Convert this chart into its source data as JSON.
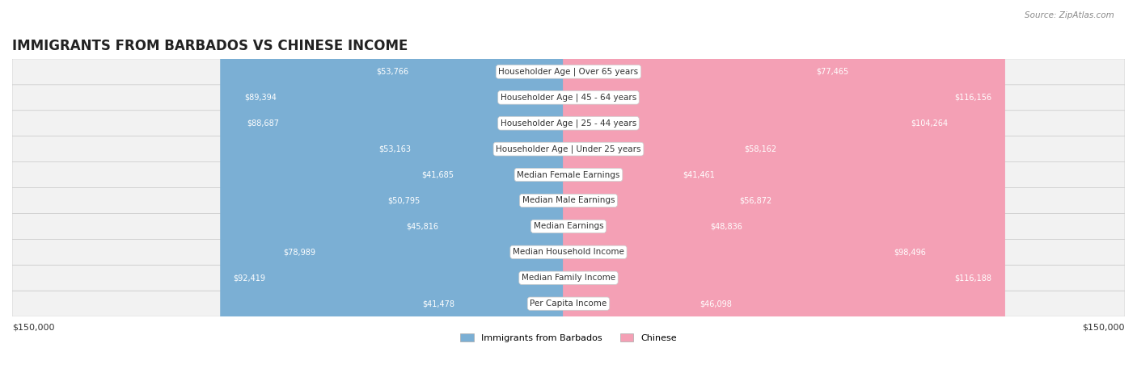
{
  "title": "IMMIGRANTS FROM BARBADOS VS CHINESE INCOME",
  "source": "Source: ZipAtlas.com",
  "categories": [
    "Per Capita Income",
    "Median Family Income",
    "Median Household Income",
    "Median Earnings",
    "Median Male Earnings",
    "Median Female Earnings",
    "Householder Age | Under 25 years",
    "Householder Age | 25 - 44 years",
    "Householder Age | 45 - 64 years",
    "Householder Age | Over 65 years"
  ],
  "barbados_values": [
    41478,
    92419,
    78989,
    45816,
    50795,
    41685,
    53163,
    88687,
    89394,
    53766
  ],
  "chinese_values": [
    46098,
    116188,
    98496,
    48836,
    56872,
    41461,
    58162,
    104264,
    116156,
    77465
  ],
  "max_val": 150000,
  "bar_height": 0.55,
  "color_barbados": "#7bafd4",
  "color_chinese": "#f4a0b5",
  "color_barbados_dark": "#5b8fbf",
  "color_chinese_dark": "#e07090",
  "bg_color": "#f5f5f5",
  "row_bg": "#ececec",
  "label_bg": "#ffffff",
  "axis_label_left": "$150,000",
  "axis_label_right": "$150,000",
  "legend_barbados": "Immigrants from Barbados",
  "legend_chinese": "Chinese"
}
